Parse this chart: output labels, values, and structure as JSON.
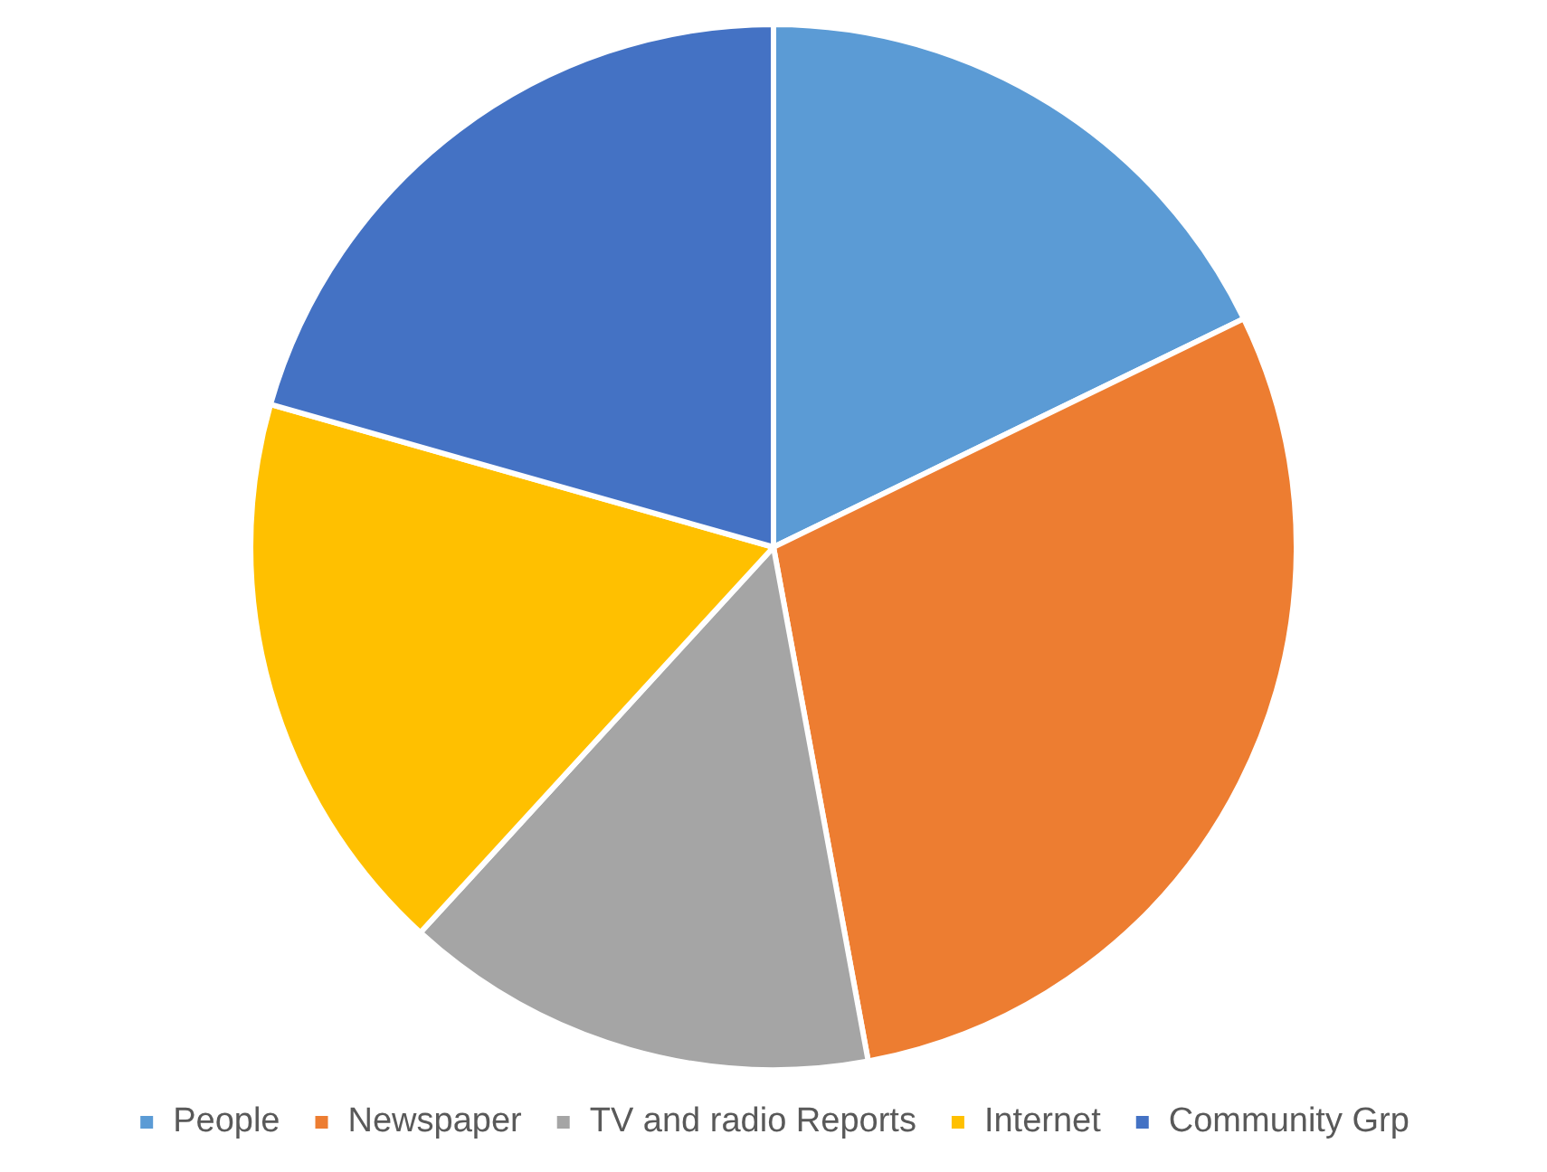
{
  "chart_data": {
    "type": "pie",
    "categories": [
      "People",
      "Newspaper",
      "TV and radio Reports",
      "Internet",
      "Community Grp"
    ],
    "values": [
      17.8,
      29.3,
      14.7,
      17.6,
      20.6
    ],
    "colors": [
      "#5b9bd5",
      "#ed7d31",
      "#a5a5a5",
      "#ffc000",
      "#4472c4"
    ],
    "legend": "bottom"
  }
}
